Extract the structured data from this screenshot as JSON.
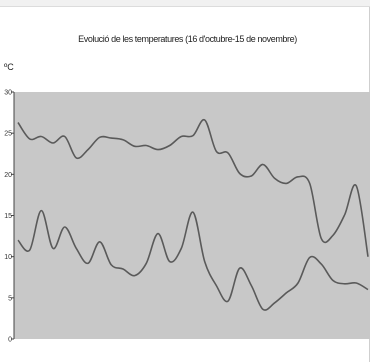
{
  "chart_data": {
    "type": "line",
    "title": "Evolució de les temperatures (16 d'octubre-15 de novembre)",
    "ylabel": "ºC",
    "xlabel": "",
    "ylim": [
      0,
      30
    ],
    "yticks": [
      "0",
      "5",
      "10",
      "15",
      "20",
      "25",
      "30"
    ],
    "grid": false,
    "plot_background": "#c8c8c8",
    "line_color": "#5a5a5a",
    "series": [
      {
        "values": [
          26.3,
          24.3,
          24.6,
          23.8,
          24.6,
          22.0,
          23.0,
          24.5,
          24.4,
          24.2,
          23.4,
          23.5,
          23.0,
          23.5,
          24.6,
          24.7,
          26.6,
          22.8,
          22.6,
          20.1,
          19.8,
          21.2,
          19.5,
          18.9,
          19.7,
          18.9,
          12.2,
          12.6,
          15.1,
          18.6,
          10.0
        ]
      },
      {
        "values": [
          12.0,
          10.8,
          15.6,
          11.0,
          13.6,
          11.0,
          9.2,
          11.8,
          9.0,
          8.5,
          7.7,
          9.2,
          12.8,
          9.4,
          11.0,
          15.4,
          9.4,
          6.5,
          4.6,
          8.6,
          6.5,
          3.6,
          4.4,
          5.6,
          6.8,
          9.9,
          9.1,
          7.1,
          6.7,
          6.8,
          6.0
        ]
      }
    ]
  }
}
